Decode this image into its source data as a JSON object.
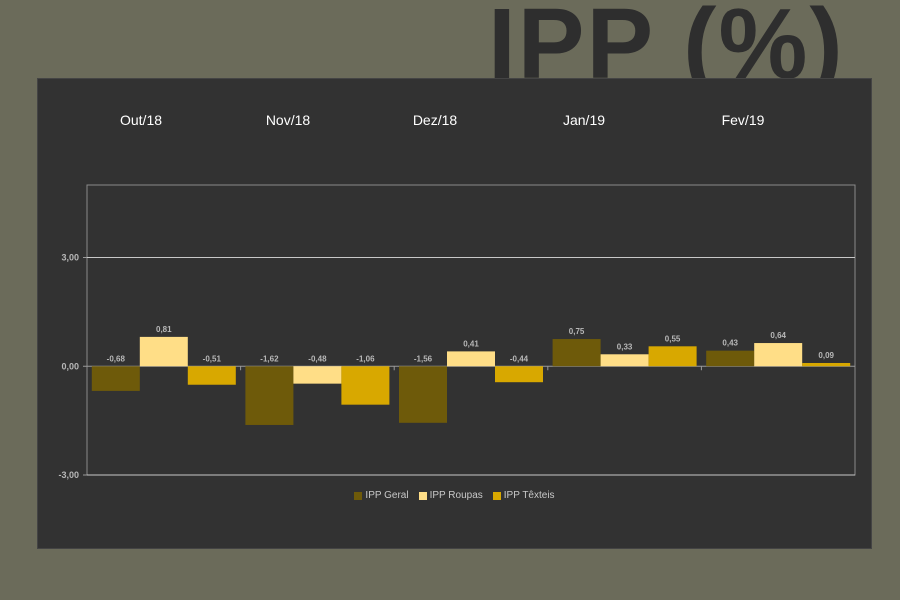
{
  "title": "IPP (%)",
  "months": [
    "Out/18",
    "Nov/18",
    "Dez/18",
    "Jan/19",
    "Fev/19"
  ],
  "chart_data": {
    "type": "bar",
    "categories": [
      "Out/18",
      "Nov/18",
      "Dez/18",
      "Jan/19",
      "Fev/19"
    ],
    "series": [
      {
        "name": "IPP Geral",
        "color": "#6e5a0a",
        "values": [
          -0.68,
          -1.62,
          -1.56,
          0.75,
          0.43
        ],
        "labels": [
          "-0,68",
          "-1,62",
          "-1,56",
          "0,75",
          "0,43"
        ]
      },
      {
        "name": "IPP Roupas",
        "color": "#ffde87",
        "values": [
          0.81,
          -0.48,
          0.41,
          0.33,
          0.64
        ],
        "labels": [
          "0,81",
          "-0,48",
          "0,41",
          "0,33",
          "0,64"
        ]
      },
      {
        "name": "IPP Têxteis",
        "color": "#d8a800",
        "values": [
          -0.51,
          -1.06,
          -0.44,
          0.55,
          0.09
        ],
        "labels": [
          "-0,51",
          "-1,06",
          "-0,44",
          "0,55",
          "0,09"
        ]
      }
    ],
    "y_ticks": [
      3,
      0,
      -3
    ],
    "y_tick_labels": [
      "3,00",
      "0,00",
      "-3,00"
    ],
    "ylim": [
      -3,
      5
    ],
    "grid": true,
    "legend_position": "bottom"
  }
}
